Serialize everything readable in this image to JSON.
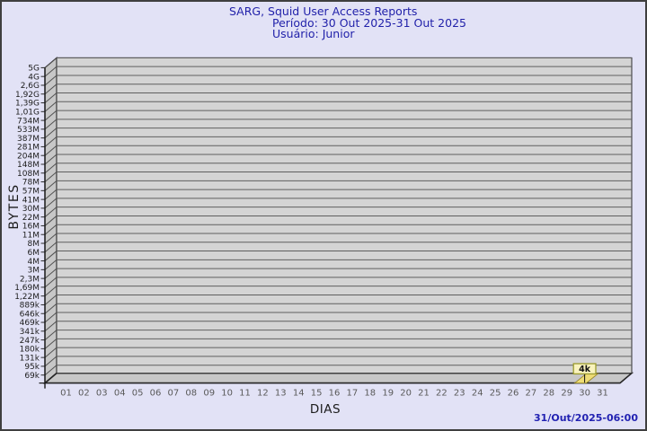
{
  "title": {
    "line1": "SARG, Squid User Access Reports",
    "line2": "Período: 30 Out 2025-31 Out 2025",
    "line3": "Usuário: Junior"
  },
  "y_axis": {
    "title": "BYTES",
    "labels": [
      "5G",
      "4G",
      "2,6G",
      "1,92G",
      "1,39G",
      "1,01G",
      "734M",
      "533M",
      "387M",
      "281M",
      "204M",
      "148M",
      "108M",
      "78M",
      "57M",
      "41M",
      "30M",
      "22M",
      "16M",
      "11M",
      "8M",
      "6M",
      "4M",
      "3M",
      "2,3M",
      "1,69M",
      "1,22M",
      "889k",
      "646k",
      "469k",
      "341k",
      "247k",
      "180k",
      "131k",
      "95k",
      "69k"
    ]
  },
  "x_axis": {
    "title": "DIAS",
    "labels": [
      "01",
      "02",
      "03",
      "04",
      "05",
      "06",
      "07",
      "08",
      "09",
      "10",
      "11",
      "12",
      "13",
      "14",
      "15",
      "16",
      "17",
      "18",
      "19",
      "20",
      "21",
      "22",
      "23",
      "24",
      "25",
      "26",
      "27",
      "28",
      "29",
      "30",
      "31"
    ]
  },
  "annotation": {
    "label": "4k",
    "day": "30"
  },
  "footer": {
    "timestamp": "31/Out/2025-06:00"
  },
  "colors": {
    "background": "#e2e2f6",
    "frame": "#3f3f3f",
    "title_text": "#2222aa",
    "plot_fill": "#d4d4d4",
    "grid_line": "#5f5f5f",
    "wall_fill": "#c7c7c7",
    "wall_diag": "#525252",
    "edge_line": "#242424",
    "axis_line": "#1a1a1a",
    "x_label": "#5a5a5a",
    "y_label": "#1c1c1c",
    "bar_fill": "#eedc76",
    "bar_border": "#8f7e1e",
    "annotation_fill": "#f9f3bd",
    "annotation_border": "#9b9b2e",
    "annotation_text": "#111111",
    "timestamp_text": "#2222b2"
  },
  "chart_data": {
    "type": "bar",
    "title": "SARG, Squid User Access Reports",
    "subtitle": "Período: 30 Out 2025-31 Out 2025 — Usuário: Junior",
    "xlabel": "DIAS",
    "ylabel": "BYTES",
    "categories": [
      "01",
      "02",
      "03",
      "04",
      "05",
      "06",
      "07",
      "08",
      "09",
      "10",
      "11",
      "12",
      "13",
      "14",
      "15",
      "16",
      "17",
      "18",
      "19",
      "20",
      "21",
      "22",
      "23",
      "24",
      "25",
      "26",
      "27",
      "28",
      "29",
      "30",
      "31"
    ],
    "values": [
      null,
      null,
      null,
      null,
      null,
      null,
      null,
      null,
      null,
      null,
      null,
      null,
      null,
      null,
      null,
      null,
      null,
      null,
      null,
      null,
      null,
      null,
      null,
      null,
      null,
      null,
      null,
      null,
      null,
      4000,
      null
    ],
    "y_scale": "log",
    "y_tick_labels": [
      "5G",
      "4G",
      "2,6G",
      "1,92G",
      "1,39G",
      "1,01G",
      "734M",
      "533M",
      "387M",
      "281M",
      "204M",
      "148M",
      "108M",
      "78M",
      "57M",
      "41M",
      "30M",
      "22M",
      "16M",
      "11M",
      "8M",
      "6M",
      "4M",
      "3M",
      "2,3M",
      "1,69M",
      "1,22M",
      "889k",
      "646k",
      "469k",
      "341k",
      "247k",
      "180k",
      "131k",
      "95k",
      "69k"
    ],
    "ylim_labels": [
      "69k",
      "5G"
    ],
    "grid": true,
    "legend": "none",
    "style": "3d-bar",
    "annotations": [
      {
        "x": "30",
        "text": "4k"
      }
    ]
  }
}
